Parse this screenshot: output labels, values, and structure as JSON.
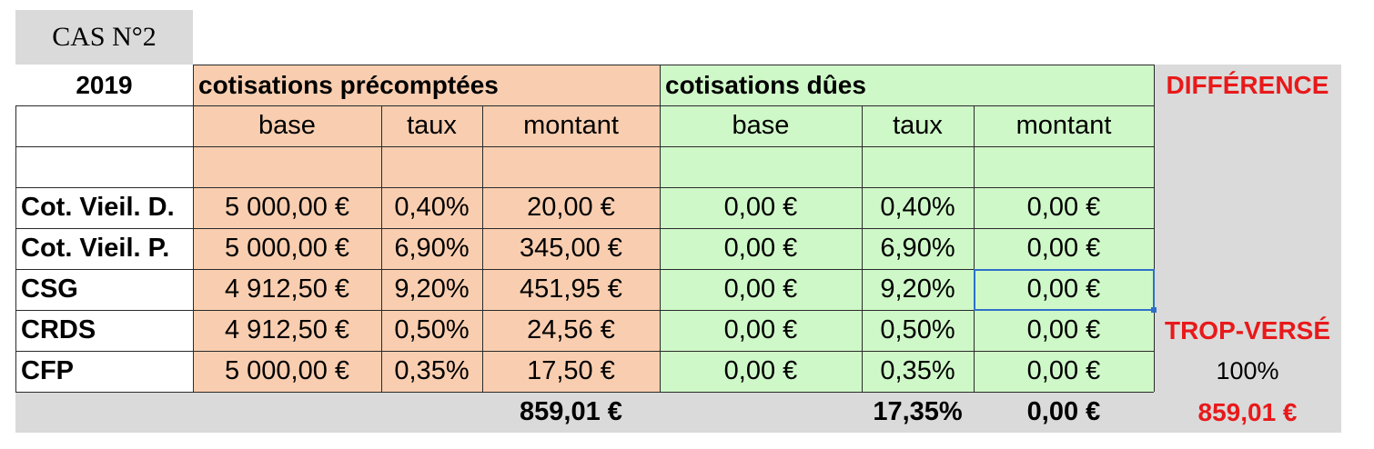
{
  "title": "CAS N°2",
  "year": "2019",
  "sections": {
    "precomptees": "cotisations précomptées",
    "dues": "cotisations dûes",
    "difference": "DIFFÉRENCE"
  },
  "columns": [
    "base",
    "taux",
    "montant",
    "base",
    "taux",
    "montant"
  ],
  "rows": [
    {
      "label": "Cot. Vieil. D.",
      "pre_base": "5 000,00 €",
      "pre_taux": "0,40%",
      "pre_montant": "20,00 €",
      "due_base": "0,00 €",
      "due_taux": "0,40%",
      "due_montant": "0,00 €"
    },
    {
      "label": "Cot. Vieil. P.",
      "pre_base": "5 000,00 €",
      "pre_taux": "6,90%",
      "pre_montant": "345,00 €",
      "due_base": "0,00 €",
      "due_taux": "6,90%",
      "due_montant": "0,00 €"
    },
    {
      "label": "CSG",
      "pre_base": "4 912,50 €",
      "pre_taux": "9,20%",
      "pre_montant": "451,95 €",
      "due_base": "0,00 €",
      "due_taux": "9,20%",
      "due_montant": "0,00 €"
    },
    {
      "label": "CRDS",
      "pre_base": "4 912,50 €",
      "pre_taux": "0,50%",
      "pre_montant": "24,56 €",
      "due_base": "0,00 €",
      "due_taux": "0,50%",
      "due_montant": "0,00 €"
    },
    {
      "label": "CFP",
      "pre_base": "5 000,00 €",
      "pre_taux": "0,35%",
      "pre_montant": "17,50 €",
      "due_base": "0,00 €",
      "due_taux": "0,35%",
      "due_montant": "0,00 €"
    }
  ],
  "totals": {
    "pre_montant": "859,01 €",
    "due_taux": "17,35%",
    "due_montant": "0,00 €"
  },
  "difference": {
    "label": "TROP-VERSÉ",
    "percent": "100%",
    "amount": "859,01 €"
  },
  "colors": {
    "orange": "#f9ceb0",
    "green": "#cff8c8",
    "grey": "#dadada",
    "red": "#e8191a",
    "selection": "#2f6fc8"
  },
  "selected_cell": "due_montant row CSG"
}
